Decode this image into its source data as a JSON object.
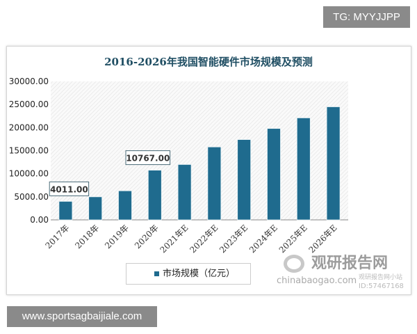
{
  "overlay": {
    "tg_label": "TG: MYYJJPP",
    "url_label": "www.sportsagbaijiale.com"
  },
  "watermark": {
    "brand": "观研报告网",
    "domain": "chinabaogao.com",
    "site": "观研报告网小站",
    "id": "ID:57467168"
  },
  "chart_data": {
    "type": "bar",
    "title": "2016-2026年我国智能硬件市场规模及预测",
    "categories": [
      "2017年",
      "2018年",
      "2019年",
      "2020年",
      "2021年E",
      "2022年E",
      "2023年E",
      "2024年E",
      "2025年E",
      "2026年E"
    ],
    "series": [
      {
        "name": "市场规模（亿元）",
        "values": [
          4011,
          5000,
          6300,
          10767,
          12000,
          15800,
          17400,
          19800,
          22100,
          24500
        ],
        "color": "#1f6b8e"
      }
    ],
    "data_labels": [
      {
        "category": "2017年",
        "text": "4011.00"
      },
      {
        "category": "2020年",
        "text": "10767.00"
      }
    ],
    "yticks": [
      "0.00",
      "5000.00",
      "10000.00",
      "15000.00",
      "20000.00",
      "25000.00",
      "30000.00"
    ],
    "ylim": [
      0,
      30000
    ],
    "grid": false,
    "background": "diagonal hatch",
    "legend": "bottom"
  }
}
